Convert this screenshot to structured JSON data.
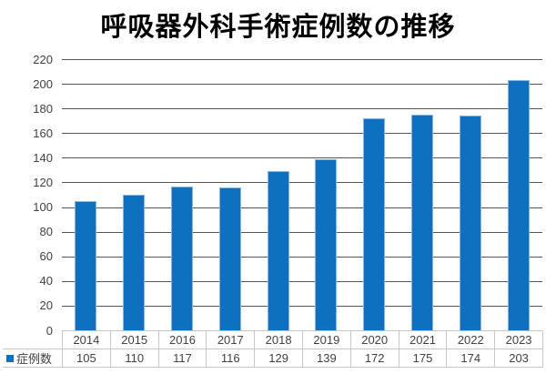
{
  "title": "呼吸器外科手術症例数の推移",
  "legend": {
    "label": "症例数"
  },
  "colors": {
    "bar": "#0d70c0",
    "bar_edge": "#86b5e2",
    "gridline": "#555555",
    "table_border": "#c6c6c6",
    "label_text": "#404040",
    "title_text": "#000000"
  },
  "chart_data": {
    "type": "bar",
    "title": "呼吸器外科手術症例数の推移",
    "categories": [
      "2014",
      "2015",
      "2016",
      "2017",
      "2018",
      "2019",
      "2020",
      "2021",
      "2022",
      "2023"
    ],
    "series": [
      {
        "name": "症例数",
        "values": [
          105,
          110,
          117,
          116,
          129,
          139,
          172,
          175,
          174,
          203
        ]
      }
    ],
    "xlabel": "",
    "ylabel": "",
    "ylim": [
      0,
      220
    ],
    "yticks": [
      0,
      20,
      40,
      60,
      80,
      100,
      120,
      140,
      160,
      180,
      200,
      220
    ],
    "grid": true,
    "legend_position": "bottom-left-data-table"
  }
}
